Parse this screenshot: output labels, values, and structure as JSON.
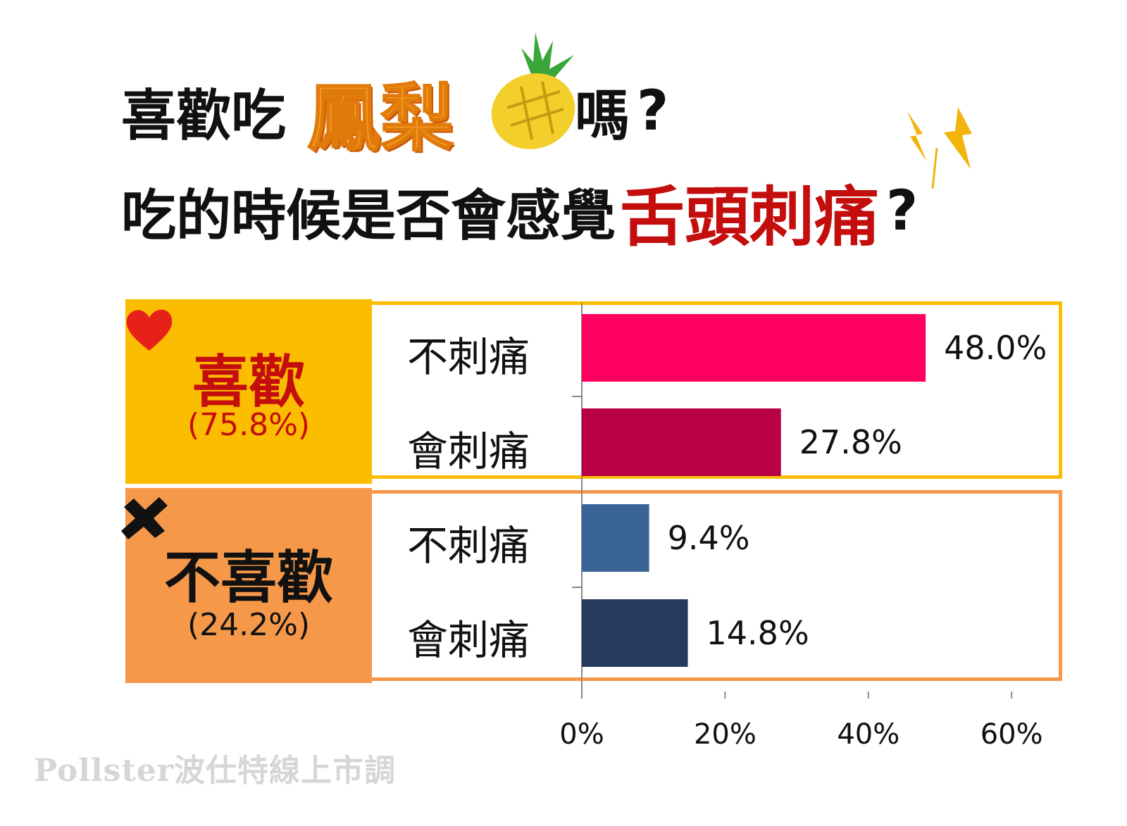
{
  "title": {
    "line1_prefix": "喜歡吃",
    "line1_highlight": "鳳梨",
    "line1_suffix": "嗎",
    "line1_qmark": "?",
    "line2_prefix": "吃的時候是否會感覺",
    "line2_highlight": "舌頭刺痛",
    "line2_qmark": "?"
  },
  "groups": [
    {
      "label": "喜歡",
      "pct_text": "(75.8%)",
      "color": "#c40d0d",
      "band_color": "#fbbd00",
      "icon": "heart-icon"
    },
    {
      "label": "不喜歡",
      "pct_text": "(24.2%)",
      "color": "#111111",
      "band_color": "#f6984a",
      "icon": "cross-icon"
    }
  ],
  "rows": [
    {
      "label": "不刺痛"
    },
    {
      "label": "會刺痛"
    },
    {
      "label": "不刺痛"
    },
    {
      "label": "會刺痛"
    }
  ],
  "chart_data": {
    "type": "bar",
    "orientation": "horizontal",
    "categories": [
      "喜歡 不刺痛",
      "喜歡 會刺痛",
      "不喜歡 不刺痛",
      "不喜歡 會刺痛"
    ],
    "values": [
      48.0,
      27.8,
      9.4,
      14.8
    ],
    "value_labels": [
      "48.0%",
      "27.8%",
      "9.4%",
      "14.8%"
    ],
    "bar_colors": [
      "#ff0060",
      "#b80044",
      "#3a6496",
      "#243b5c"
    ],
    "xlim": [
      0,
      60
    ],
    "xticks": [
      0,
      20,
      40,
      60
    ],
    "xtick_labels": [
      "0%",
      "20%",
      "40%",
      "60%"
    ]
  },
  "footer": "Pollster波仕特線上市調"
}
